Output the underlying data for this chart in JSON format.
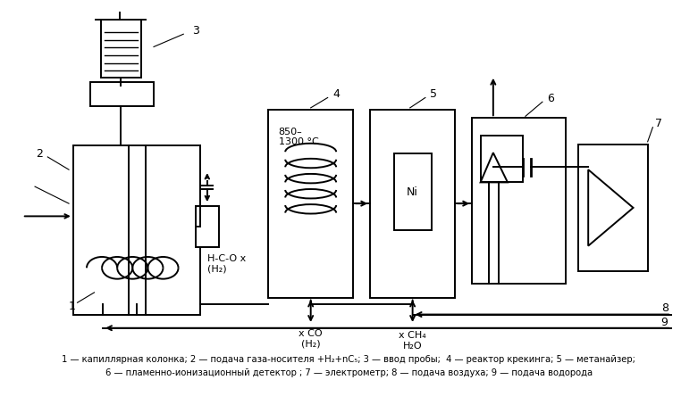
{
  "bg": "#ffffff",
  "lw": 1.4,
  "col": "#000000",
  "caption1": "1 — капиллярная колонка; 2 — подача газа-носителя +H₂+nC₅; 3 — ввод пробы;  4 — реактор крекинга; 5 — метанайзер;",
  "caption2": "6 — пламенно-ионизационный детектор ; 7 — электрометр; 8 — подача воздуха; 9 — подача водорода",
  "temp_label": "850–\n1300 °C",
  "ni_label": "Ni",
  "hcox_label": "H-C-O x\n(H₂)",
  "xco_label": "x CO\n(H₂)",
  "xch4_label": "x CH₄\nH₂O"
}
